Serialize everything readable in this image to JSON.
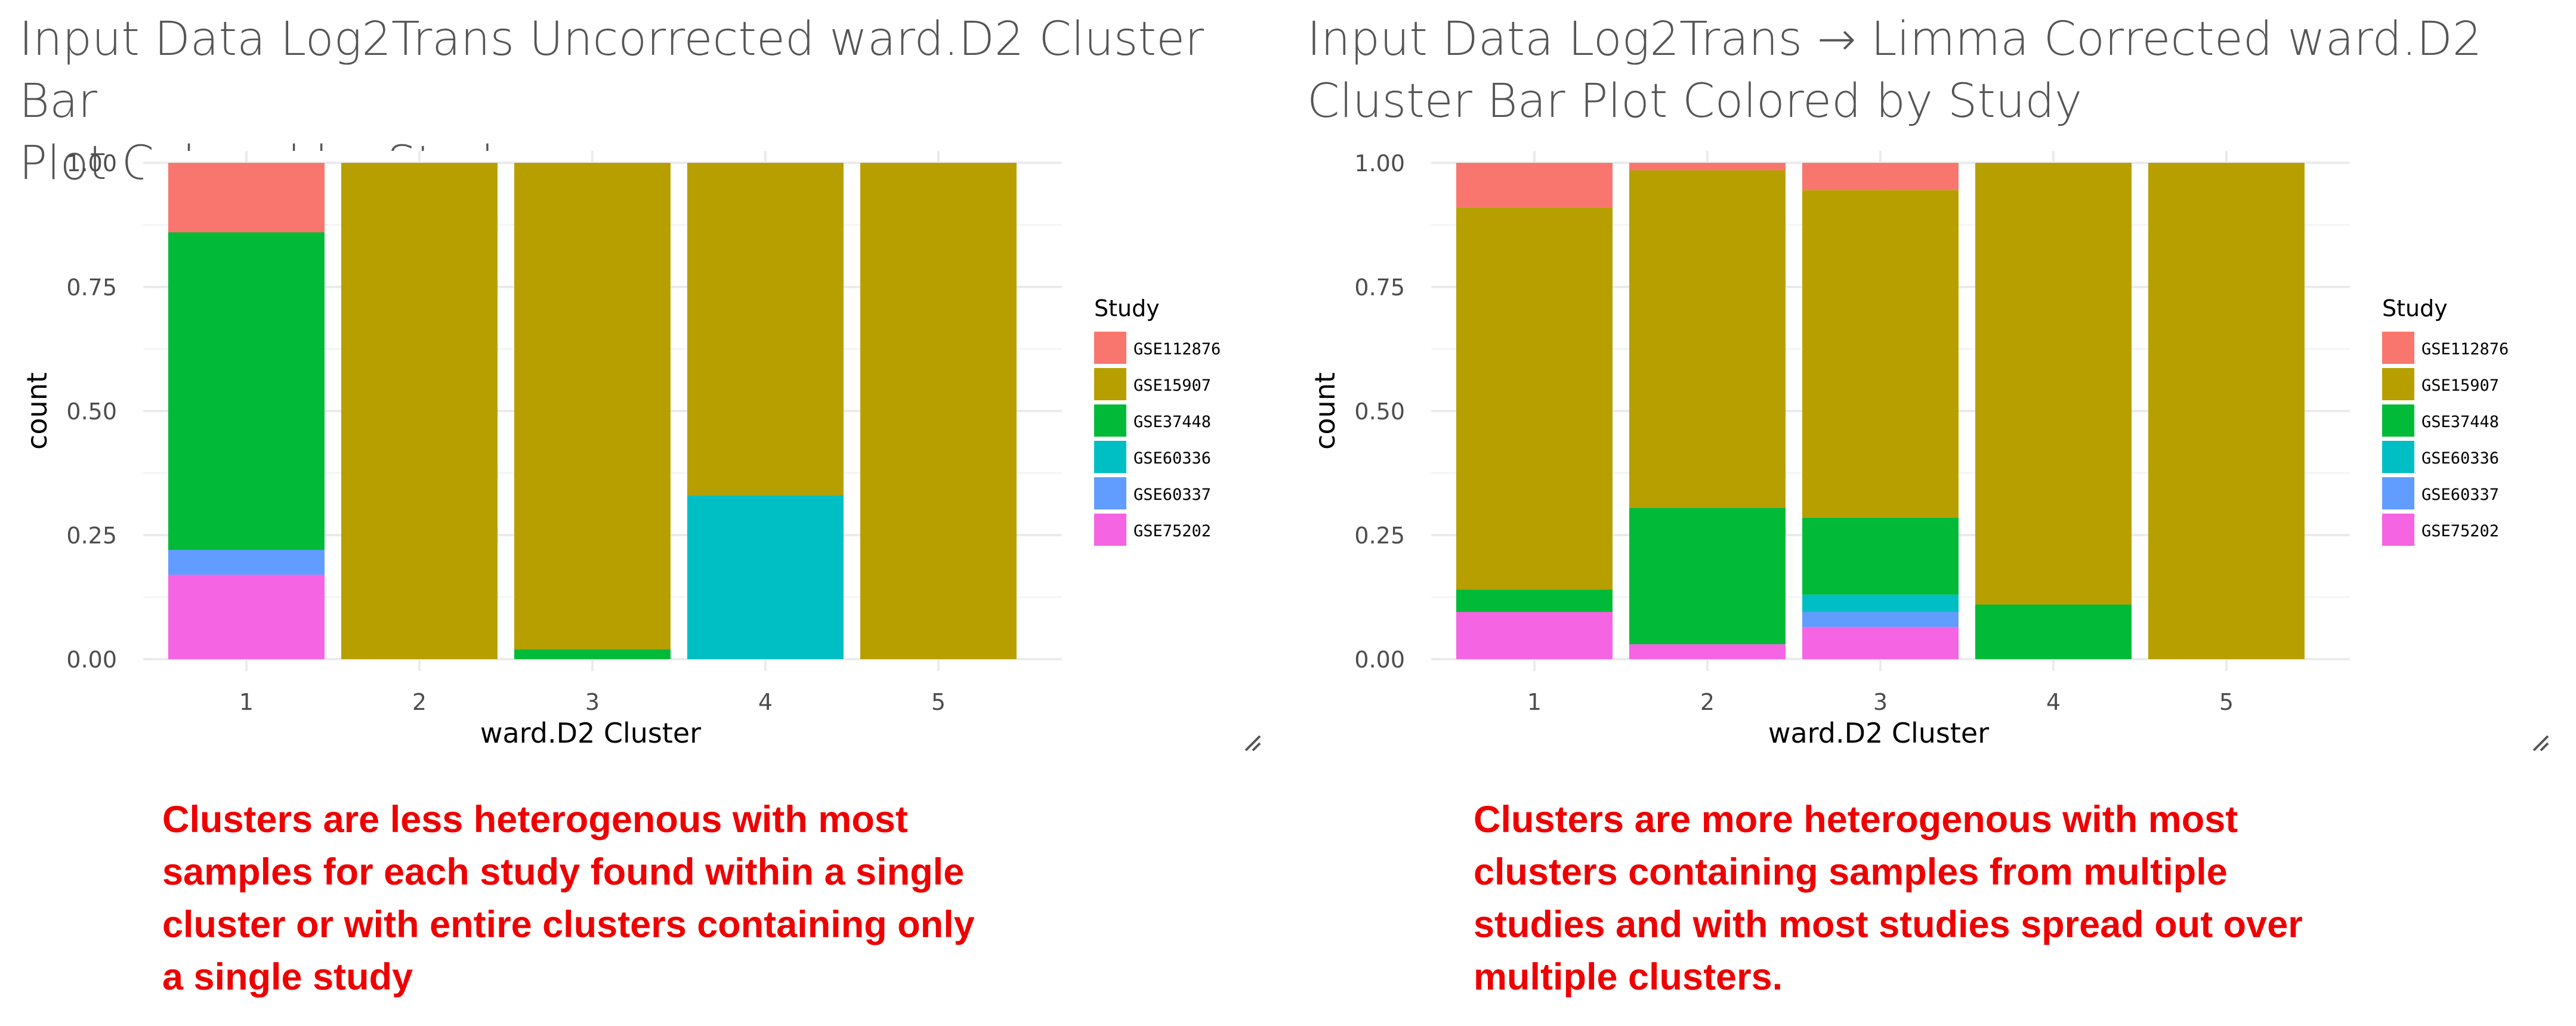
{
  "panels": [
    {
      "title": "Input Data Log2Trans Uncorrected ward.D2 Cluster Bar\nPlot Colored by Study",
      "caption": "Clusters are less heterogenous with most\nsamples for each study found within a\nsingle cluster or with entire clusters\ncontaining only a single study"
    },
    {
      "title": "Input Data Log2Trans → Limma Corrected ward.D2\nCluster Bar Plot Colored by Study",
      "caption": "Clusters are more heterogenous with most\nclusters containing samples from multiple\nstudies and with most studies spread out\nover multiple clusters."
    }
  ],
  "chart_data": [
    {
      "type": "bar",
      "stacked": true,
      "title": "Input Data Log2Trans Uncorrected ward.D2 Cluster Bar Plot Colored by Study",
      "xlabel": "ward.D2 Cluster",
      "ylabel": "count",
      "ylim": [
        0,
        1
      ],
      "yticks": [
        "0.00",
        "0.25",
        "0.50",
        "0.75",
        "1.00"
      ],
      "categories": [
        "1",
        "2",
        "3",
        "4",
        "5"
      ],
      "legend_title": "Study",
      "legend_position": "right",
      "grid": true,
      "series": [
        {
          "name": "GSE112876",
          "color": "#F8766D",
          "values": [
            0.14,
            0,
            0,
            0,
            0
          ]
        },
        {
          "name": "GSE15907",
          "color": "#B79F00",
          "values": [
            0,
            1.0,
            0.98,
            0.67,
            1.0
          ]
        },
        {
          "name": "GSE37448",
          "color": "#00BA38",
          "values": [
            0.64,
            0,
            0.02,
            0,
            0
          ]
        },
        {
          "name": "GSE60336",
          "color": "#00BFC4",
          "values": [
            0,
            0,
            0,
            0.33,
            0
          ]
        },
        {
          "name": "GSE60337",
          "color": "#619CFF",
          "values": [
            0.05,
            0,
            0,
            0,
            0
          ]
        },
        {
          "name": "GSE75202",
          "color": "#F564E3",
          "values": [
            0.17,
            0,
            0,
            0,
            0
          ]
        }
      ]
    },
    {
      "type": "bar",
      "stacked": true,
      "title": "Input Data Log2Trans → Limma Corrected ward.D2 Cluster Bar Plot Colored by Study",
      "xlabel": "ward.D2 Cluster",
      "ylabel": "count",
      "ylim": [
        0,
        1
      ],
      "yticks": [
        "0.00",
        "0.25",
        "0.50",
        "0.75",
        "1.00"
      ],
      "categories": [
        "1",
        "2",
        "3",
        "4",
        "5"
      ],
      "legend_title": "Study",
      "legend_position": "right",
      "grid": true,
      "series": [
        {
          "name": "GSE112876",
          "color": "#F8766D",
          "values": [
            0.09,
            0.015,
            0.055,
            0,
            0
          ]
        },
        {
          "name": "GSE15907",
          "color": "#B79F00",
          "values": [
            0.77,
            0.68,
            0.66,
            0.89,
            1.0
          ]
        },
        {
          "name": "GSE37448",
          "color": "#00BA38",
          "values": [
            0.045,
            0.275,
            0.155,
            0.11,
            0
          ]
        },
        {
          "name": "GSE60336",
          "color": "#00BFC4",
          "values": [
            0,
            0,
            0.035,
            0,
            0
          ]
        },
        {
          "name": "GSE60337",
          "color": "#619CFF",
          "values": [
            0,
            0,
            0.03,
            0,
            0
          ]
        },
        {
          "name": "GSE75202",
          "color": "#F564E3",
          "values": [
            0.095,
            0.03,
            0.065,
            0,
            0
          ]
        }
      ]
    }
  ]
}
